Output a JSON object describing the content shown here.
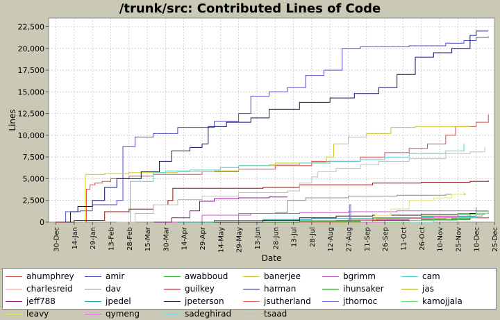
{
  "chart_data": {
    "type": "line",
    "title": "/trunk/src: Contributed Lines of Code",
    "xlabel": "Date",
    "ylabel": "Lines",
    "ylim": [
      0,
      23500
    ],
    "yticks": [
      "0",
      "2,500",
      "5,000",
      "7,500",
      "10,000",
      "12,500",
      "15,000",
      "17,500",
      "20,000",
      "22,500"
    ],
    "ytick_values": [
      0,
      2500,
      5000,
      7500,
      10000,
      12500,
      15000,
      17500,
      20000,
      22500
    ],
    "xticks": [
      "30-Dec",
      "14-Jan",
      "29-Jan",
      "13-Feb",
      "28-Feb",
      "15-Mar",
      "30-Mar",
      "14-Apr",
      "29-Apr",
      "14-May",
      "29-May",
      "13-Jun",
      "28-Jun",
      "13-Jul",
      "28-Jul",
      "12-Aug",
      "27-Aug",
      "11-Sep",
      "26-Sep",
      "11-Oct",
      "26-Oct",
      "10-Nov",
      "25-Nov",
      "10-Dec",
      "25-Dec"
    ],
    "xlim_days": [
      -6,
      360
    ],
    "grid": true,
    "legend_position": "bottom",
    "series": [
      {
        "name": "ahumphrey",
        "color": "#d94a4a",
        "points": [
          [
            22,
            0
          ],
          [
            25,
            3800
          ],
          [
            28,
            4300
          ],
          [
            32,
            4500
          ],
          [
            38,
            4700
          ],
          [
            45,
            5000
          ],
          [
            60,
            5300
          ],
          [
            80,
            5500
          ],
          [
            120,
            5800
          ],
          [
            150,
            6100
          ],
          [
            180,
            6500
          ],
          [
            210,
            7000
          ],
          [
            250,
            7500
          ],
          [
            270,
            8000
          ],
          [
            290,
            8500
          ],
          [
            305,
            9000
          ],
          [
            320,
            10000
          ],
          [
            328,
            11000
          ],
          [
            345,
            11500
          ],
          [
            355,
            12400
          ]
        ]
      },
      {
        "name": "amir",
        "color": "#4b4bcb",
        "points": [
          [
            5,
            0
          ],
          [
            8,
            1200
          ],
          [
            20,
            1300
          ],
          [
            30,
            2000
          ],
          [
            50,
            2500
          ],
          [
            55,
            8700
          ],
          [
            65,
            9800
          ],
          [
            80,
            10200
          ],
          [
            100,
            10900
          ],
          [
            130,
            11600
          ],
          [
            150,
            12500
          ],
          [
            160,
            14500
          ],
          [
            175,
            15000
          ],
          [
            190,
            15500
          ],
          [
            205,
            16900
          ],
          [
            220,
            17500
          ],
          [
            235,
            20000
          ],
          [
            250,
            20200
          ],
          [
            290,
            20300
          ],
          [
            320,
            20600
          ],
          [
            335,
            20900
          ],
          [
            345,
            21300
          ],
          [
            355,
            21400
          ]
        ]
      },
      {
        "name": "awabboud",
        "color": "#2fb82f",
        "points": [
          [
            300,
            0
          ],
          [
            310,
            200
          ],
          [
            325,
            400
          ],
          [
            340,
            900
          ],
          [
            352,
            1000
          ]
        ]
      },
      {
        "name": "banerjee",
        "color": "#c9c92f",
        "points": [
          [
            22,
            0
          ],
          [
            24,
            5500
          ],
          [
            40,
            5600
          ],
          [
            60,
            5700
          ],
          [
            100,
            5800
          ],
          [
            130,
            5900
          ],
          [
            150,
            6500
          ],
          [
            180,
            6800
          ],
          [
            210,
            6900
          ],
          [
            222,
            7500
          ],
          [
            228,
            9000
          ],
          [
            240,
            9800
          ],
          [
            255,
            10200
          ],
          [
            275,
            10900
          ],
          [
            295,
            11000
          ],
          [
            320,
            11000
          ],
          [
            340,
            11000
          ]
        ]
      },
      {
        "name": "bgrimm",
        "color": "#c957c9",
        "points": [
          [
            80,
            0
          ],
          [
            120,
            800
          ],
          [
            160,
            1000
          ],
          [
            200,
            1100
          ],
          [
            240,
            1200
          ],
          [
            280,
            1300
          ],
          [
            320,
            1300
          ],
          [
            355,
            1300
          ]
        ]
      },
      {
        "name": "cam",
        "color": "#4fd4d4",
        "points": [
          [
            60,
            0
          ],
          [
            61,
            4700
          ],
          [
            80,
            5700
          ],
          [
            90,
            5900
          ],
          [
            110,
            6000
          ],
          [
            135,
            6300
          ],
          [
            150,
            6500
          ],
          [
            175,
            6600
          ],
          [
            200,
            6800
          ],
          [
            225,
            7000
          ],
          [
            250,
            7200
          ],
          [
            270,
            7500
          ],
          [
            290,
            7900
          ],
          [
            320,
            8200
          ],
          [
            335,
            9000
          ]
        ]
      },
      {
        "name": "charlesreid",
        "color": "#e8a0a0",
        "points": [
          [
            160,
            0
          ],
          [
            200,
            200
          ],
          [
            240,
            300
          ],
          [
            280,
            400
          ],
          [
            320,
            500
          ],
          [
            355,
            500
          ]
        ]
      },
      {
        "name": "dav",
        "color": "#8c8c8c",
        "points": [
          [
            120,
            0
          ],
          [
            150,
            1000
          ],
          [
            180,
            1100
          ],
          [
            190,
            2500
          ],
          [
            205,
            2800
          ],
          [
            240,
            3000
          ],
          [
            280,
            3100
          ],
          [
            320,
            3200
          ],
          [
            336,
            3300
          ]
        ]
      },
      {
        "name": "guilkey",
        "color": "#8f0f0f",
        "points": [
          [
            0,
            0
          ],
          [
            15,
            200
          ],
          [
            40,
            1200
          ],
          [
            60,
            1500
          ],
          [
            80,
            2000
          ],
          [
            92,
            2500
          ],
          [
            96,
            3900
          ],
          [
            130,
            3900
          ],
          [
            170,
            4000
          ],
          [
            200,
            4300
          ],
          [
            260,
            4500
          ],
          [
            300,
            4600
          ],
          [
            340,
            4700
          ],
          [
            355,
            4800
          ]
        ]
      },
      {
        "name": "harman",
        "color": "#0f0f6f",
        "points": [
          [
            8,
            0
          ],
          [
            12,
            1200
          ],
          [
            18,
            1800
          ],
          [
            30,
            2500
          ],
          [
            40,
            4000
          ],
          [
            50,
            5000
          ],
          [
            70,
            5800
          ],
          [
            85,
            7000
          ],
          [
            95,
            8200
          ],
          [
            110,
            8600
          ],
          [
            120,
            9000
          ],
          [
            125,
            11000
          ],
          [
            140,
            11500
          ],
          [
            160,
            12000
          ],
          [
            175,
            13000
          ],
          [
            200,
            13800
          ],
          [
            225,
            14300
          ],
          [
            245,
            14800
          ],
          [
            265,
            15500
          ],
          [
            280,
            17000
          ],
          [
            295,
            19000
          ],
          [
            310,
            19500
          ],
          [
            325,
            20000
          ],
          [
            340,
            21500
          ],
          [
            345,
            22000
          ],
          [
            355,
            22000
          ]
        ]
      },
      {
        "name": "ihunsaker",
        "color": "#0f7f0f",
        "points": [
          [
            150,
            0
          ],
          [
            200,
            100
          ],
          [
            250,
            200
          ],
          [
            300,
            300
          ],
          [
            340,
            500
          ],
          [
            355,
            600
          ]
        ]
      },
      {
        "name": "jas",
        "color": "#9f9f0f",
        "points": [
          [
            230,
            0
          ],
          [
            260,
            400
          ],
          [
            300,
            700
          ],
          [
            330,
            1000
          ],
          [
            345,
            1200
          ]
        ]
      },
      {
        "name": "jeff788",
        "color": "#8f0f8f",
        "points": [
          [
            80,
            0
          ],
          [
            95,
            500
          ],
          [
            110,
            1300
          ],
          [
            118,
            2400
          ],
          [
            130,
            2700
          ],
          [
            150,
            2800
          ],
          [
            175,
            2900
          ],
          [
            190,
            2900
          ]
        ]
      },
      {
        "name": "jpedel",
        "color": "#0f9f9f",
        "points": [
          [
            100,
            0
          ],
          [
            130,
            200
          ],
          [
            170,
            300
          ],
          [
            210,
            400
          ],
          [
            260,
            500
          ],
          [
            300,
            600
          ],
          [
            345,
            1700
          ]
        ]
      },
      {
        "name": "jpeterson",
        "color": "#1f1f1f",
        "points": [
          [
            130,
            0
          ],
          [
            170,
            200
          ],
          [
            200,
            500
          ],
          [
            230,
            700
          ],
          [
            260,
            800
          ],
          [
            300,
            900
          ],
          [
            340,
            1000
          ],
          [
            355,
            1100
          ]
        ]
      },
      {
        "name": "jsutherland",
        "color": "#e86060",
        "points": [
          [
            200,
            0
          ],
          [
            230,
            200
          ],
          [
            260,
            300
          ],
          [
            290,
            400
          ],
          [
            320,
            500
          ],
          [
            355,
            600
          ]
        ]
      },
      {
        "name": "jthornoc",
        "color": "#6f6fdf",
        "points": [
          [
            240,
            0
          ],
          [
            241,
            2000
          ],
          [
            242,
            0
          ]
        ]
      },
      {
        "name": "kamojjala",
        "color": "#5fdf5f",
        "points": [
          [
            270,
            0
          ],
          [
            290,
            200
          ],
          [
            310,
            500
          ],
          [
            330,
            900
          ],
          [
            345,
            1200
          ],
          [
            355,
            1300
          ]
        ]
      },
      {
        "name": "leavy",
        "color": "#e6e65f",
        "points": [
          [
            260,
            0
          ],
          [
            262,
            800
          ],
          [
            275,
            1500
          ],
          [
            290,
            2500
          ],
          [
            310,
            2800
          ],
          [
            325,
            3200
          ],
          [
            335,
            3500
          ]
        ]
      },
      {
        "name": "qymeng",
        "color": "#df5fdf",
        "points": [
          [
            250,
            0
          ],
          [
            270,
            300
          ],
          [
            290,
            500
          ],
          [
            310,
            600
          ],
          [
            330,
            700
          ],
          [
            350,
            800
          ]
        ]
      },
      {
        "name": "sadeghirad",
        "color": "#6fdfdf",
        "points": [
          [
            290,
            0
          ],
          [
            310,
            200
          ],
          [
            330,
            500
          ],
          [
            345,
            1000
          ],
          [
            355,
            1200
          ]
        ]
      },
      {
        "name": "tsaad",
        "color": "#bfbfbf",
        "points": [
          [
            50,
            0
          ],
          [
            65,
            1000
          ],
          [
            80,
            2000
          ],
          [
            100,
            2600
          ],
          [
            120,
            3000
          ],
          [
            150,
            3400
          ],
          [
            190,
            3600
          ],
          [
            200,
            4500
          ],
          [
            210,
            5200
          ],
          [
            215,
            5800
          ],
          [
            230,
            6200
          ],
          [
            250,
            6600
          ],
          [
            265,
            7000
          ],
          [
            290,
            7300
          ],
          [
            320,
            7900
          ],
          [
            340,
            8100
          ],
          [
            352,
            8700
          ]
        ]
      }
    ]
  }
}
